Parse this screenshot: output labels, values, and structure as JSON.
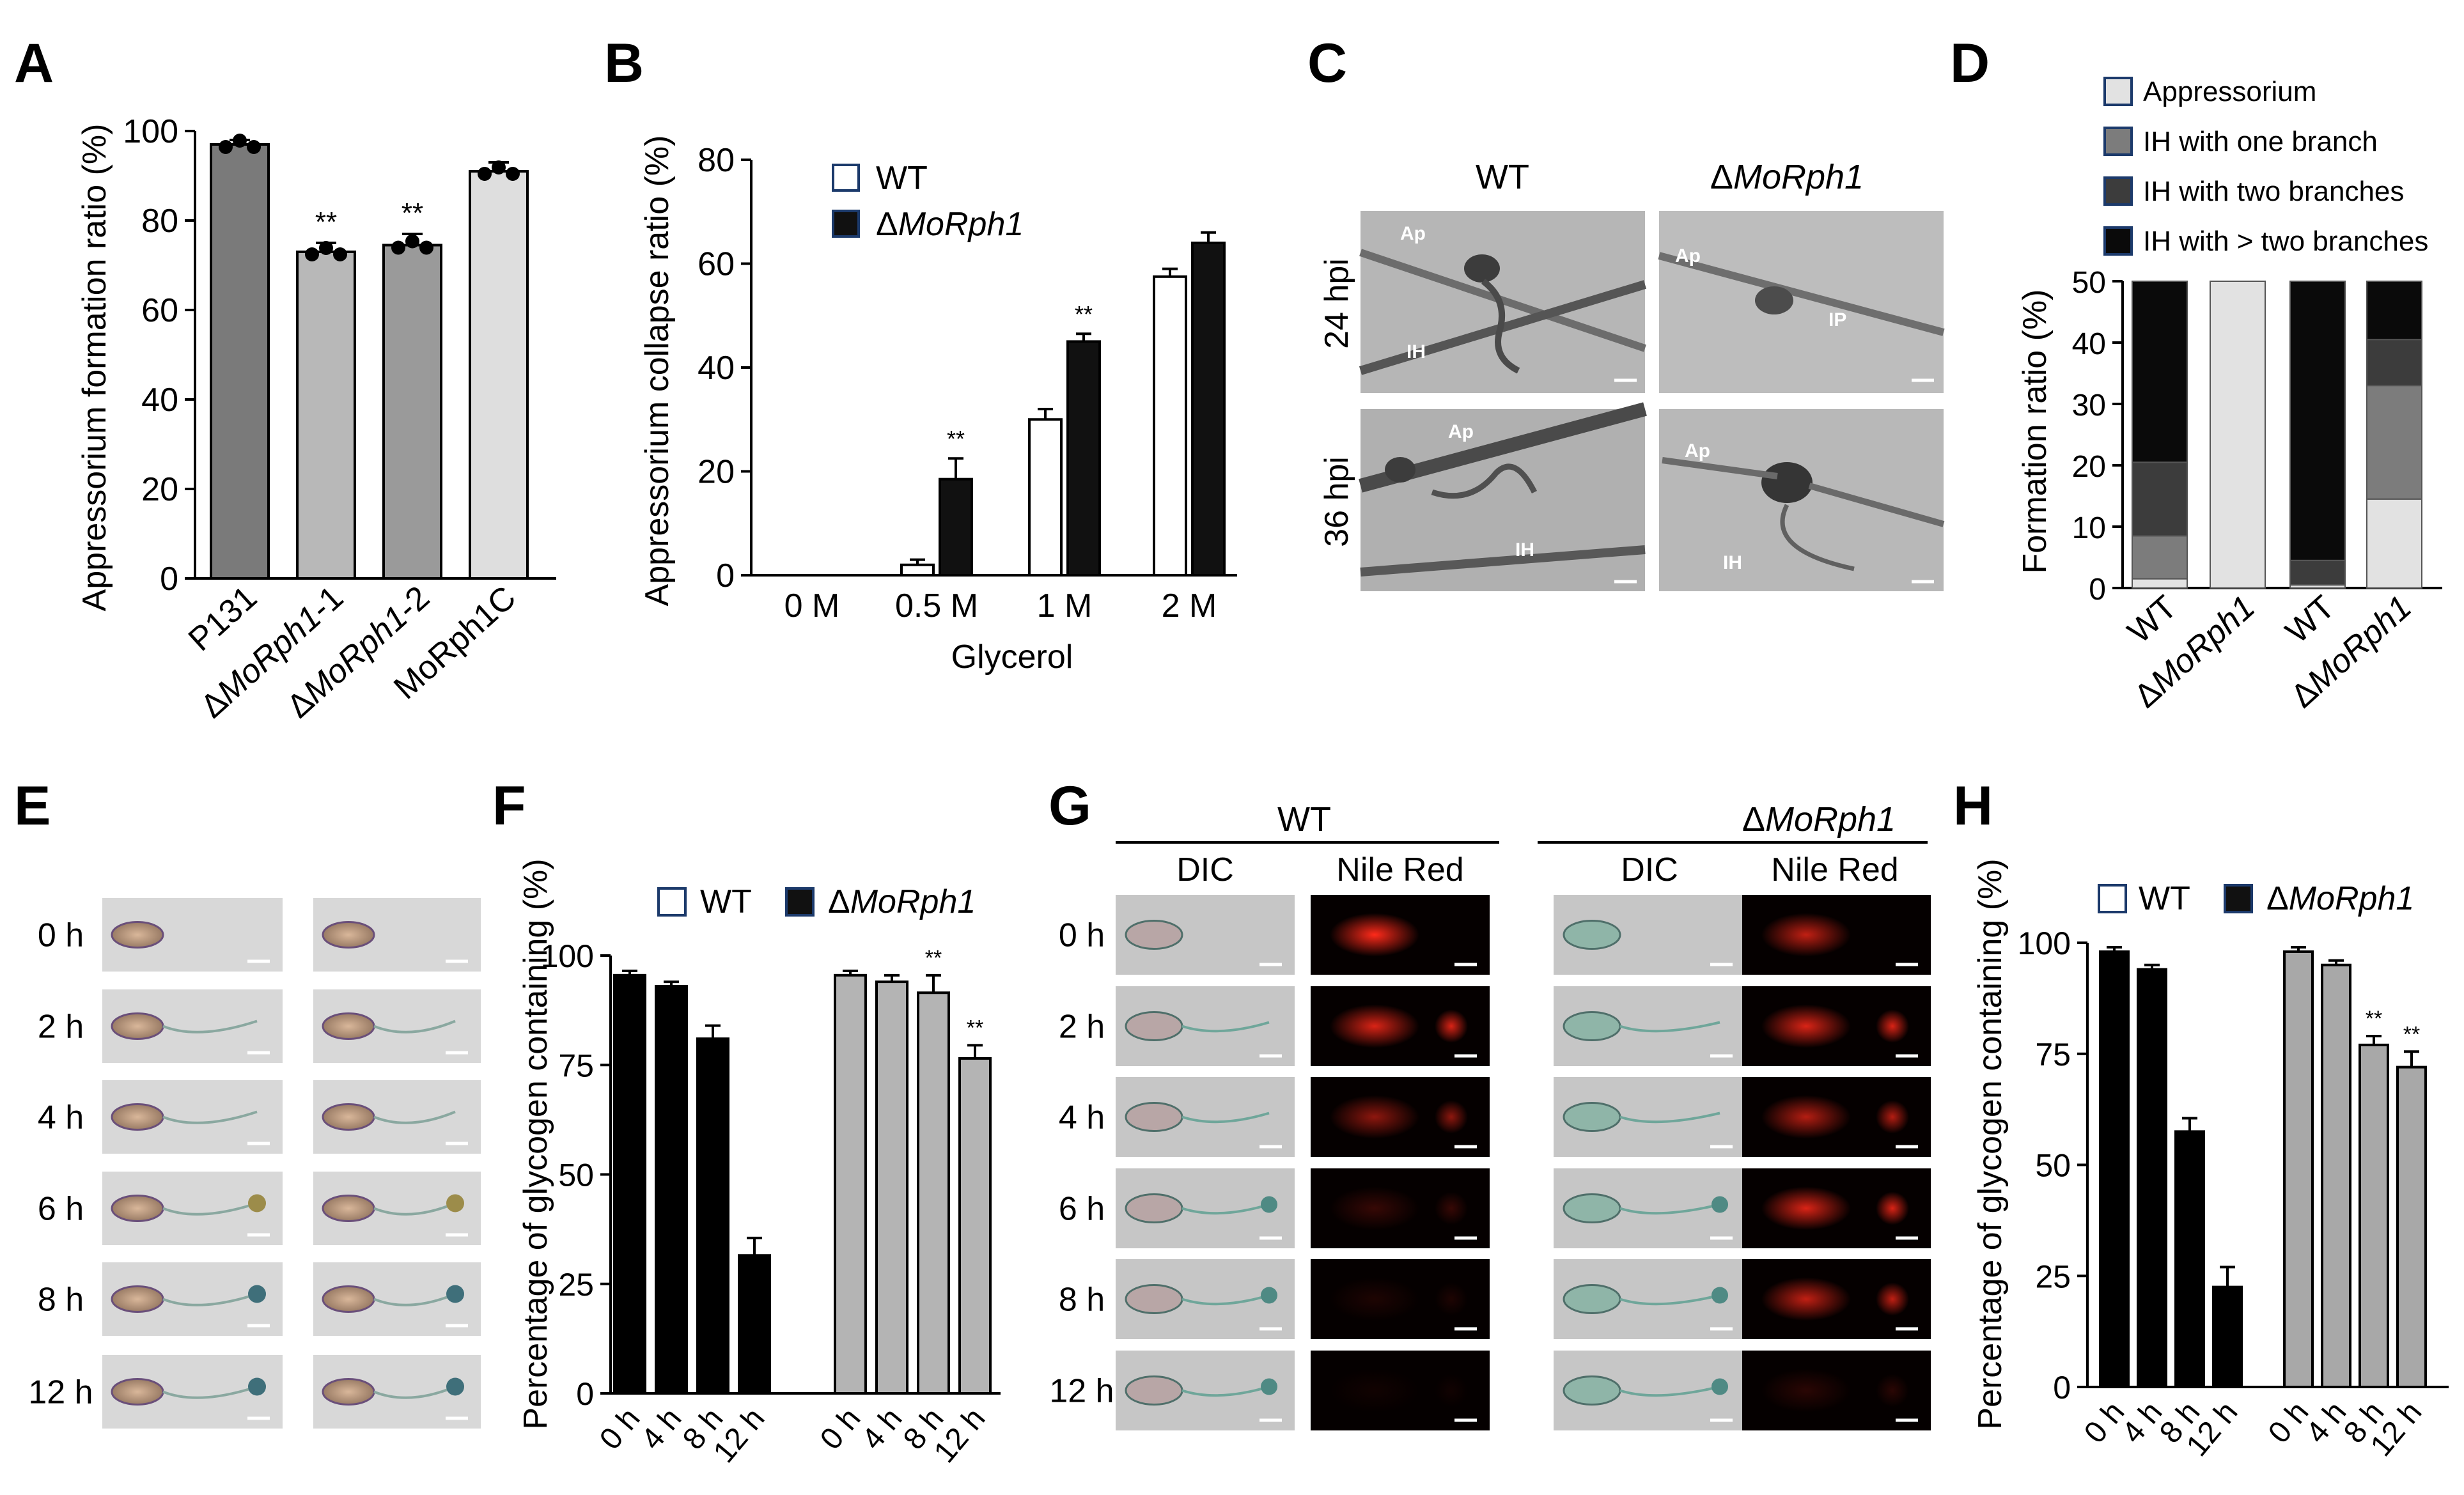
{
  "panels": {
    "a": "A",
    "b": "B",
    "c": "C",
    "d": "D",
    "e": "E",
    "f": "F",
    "g": "G",
    "h": "H"
  },
  "chart_data": [
    {
      "id": "A",
      "type": "bar",
      "ylabel": "Appressorium formation ratio (%)",
      "ylim": [
        0,
        100
      ],
      "yticks": [
        0,
        20,
        40,
        60,
        80,
        100
      ],
      "categories": [
        "P131",
        "ΔMoRph1-1",
        "ΔMoRph1-2",
        "MoRph1C"
      ],
      "values": [
        97,
        73,
        74.5,
        91
      ],
      "errors": [
        1,
        2,
        2.5,
        2
      ],
      "colors": [
        "#7a7a7a",
        "#b8b8b8",
        "#9a9a9a",
        "#dedede"
      ],
      "annotations": [
        "",
        "**",
        "**",
        ""
      ]
    },
    {
      "id": "B",
      "type": "bar",
      "ylabel": "Appressorium collapse ratio (%)",
      "xlabel": "Glycerol",
      "ylim": [
        0,
        80
      ],
      "yticks": [
        0,
        20,
        40,
        60,
        80
      ],
      "categories": [
        "0 M",
        "0.5 M",
        "1 M",
        "2 M"
      ],
      "series": [
        {
          "name": "WT",
          "values": [
            0,
            2,
            30,
            57.5
          ],
          "errors": [
            0,
            1,
            2,
            1.5
          ],
          "color": "#ffffff"
        },
        {
          "name": "ΔMoRph1",
          "values": [
            0,
            18.5,
            45,
            64
          ],
          "errors": [
            0,
            4,
            1.5,
            2
          ],
          "color": "#111111"
        }
      ],
      "annotations": [
        "",
        "**",
        "**",
        ""
      ]
    },
    {
      "id": "C",
      "type": "image-grid",
      "columns": [
        "WT",
        "ΔMoRph1"
      ],
      "rows": [
        "24 hpi",
        "36 hpi"
      ],
      "labels": {
        "ap": "Ap",
        "ih": "IH",
        "ip": "IP"
      }
    },
    {
      "id": "D",
      "type": "stacked-bar",
      "ylabel": "Formation ratio (%)",
      "ylim": [
        0,
        50
      ],
      "yticks": [
        0,
        10,
        20,
        30,
        40,
        50
      ],
      "categories": [
        "WT",
        "ΔMoRph1",
        "WT",
        "ΔMoRph1"
      ],
      "series": [
        {
          "name": "Appressorium",
          "values": [
            1.5,
            50,
            0.5,
            14.5
          ],
          "color": "#e2e2e2"
        },
        {
          "name": "IH with one branch",
          "values": [
            7,
            0,
            0,
            18.5
          ],
          "color": "#7c7c7c"
        },
        {
          "name": "IH with two branches",
          "values": [
            12,
            0,
            4,
            7.5
          ],
          "color": "#3c3c3c"
        },
        {
          "name": "IH with > two branches",
          "values": [
            29.5,
            0,
            45.5,
            9.5
          ],
          "color": "#0a0a0a"
        }
      ]
    },
    {
      "id": "E",
      "type": "image-grid",
      "rows": [
        "0 h",
        "2 h",
        "4 h",
        "6 h",
        "8 h",
        "12 h"
      ]
    },
    {
      "id": "F",
      "type": "bar",
      "ylabel": "Percentage of glycogen containing (%)",
      "ylim": [
        0,
        100
      ],
      "yticks": [
        0,
        25,
        50,
        75,
        100
      ],
      "categories": [
        "0 h",
        "4 h",
        "8 h",
        "12 h"
      ],
      "series": [
        {
          "name": "WT",
          "values": [
            95.5,
            93,
            81,
            31.5
          ],
          "errors": [
            1,
            1,
            3,
            4
          ],
          "color": "#000000"
        },
        {
          "name": "ΔMoRph1",
          "values": [
            95.5,
            94,
            91.5,
            76.5
          ],
          "errors": [
            1,
            1.5,
            4,
            3
          ],
          "color": "#b4b4b4"
        }
      ],
      "annotations": [
        [
          "",
          "",
          "",
          ""
        ],
        [
          "",
          "",
          "**",
          "**"
        ]
      ]
    },
    {
      "id": "G",
      "type": "image-grid",
      "groups": [
        "WT",
        "ΔMoRph1"
      ],
      "columns": [
        "DIC",
        "Nile Red",
        "DIC",
        "Nile Red"
      ],
      "rows": [
        "0 h",
        "2 h",
        "4 h",
        "6 h",
        "8 h",
        "12 h"
      ]
    },
    {
      "id": "H",
      "type": "bar",
      "ylabel": "Percentage of glycogen containing (%)",
      "ylim": [
        0,
        100
      ],
      "yticks": [
        0,
        25,
        50,
        75,
        100
      ],
      "categories": [
        "0 h",
        "4 h",
        "8 h",
        "12 h"
      ],
      "series": [
        {
          "name": "WT",
          "values": [
            98,
            94,
            57.5,
            22.5
          ],
          "errors": [
            1,
            1,
            3,
            4.5
          ],
          "color": "#000000"
        },
        {
          "name": "ΔMoRph1",
          "values": [
            98,
            95,
            77,
            72
          ],
          "errors": [
            1,
            1,
            2,
            3.5
          ],
          "color": "#a8a8a8"
        }
      ],
      "annotations": [
        [
          "",
          "",
          "",
          ""
        ],
        [
          "",
          "",
          "**",
          "**"
        ]
      ]
    }
  ]
}
